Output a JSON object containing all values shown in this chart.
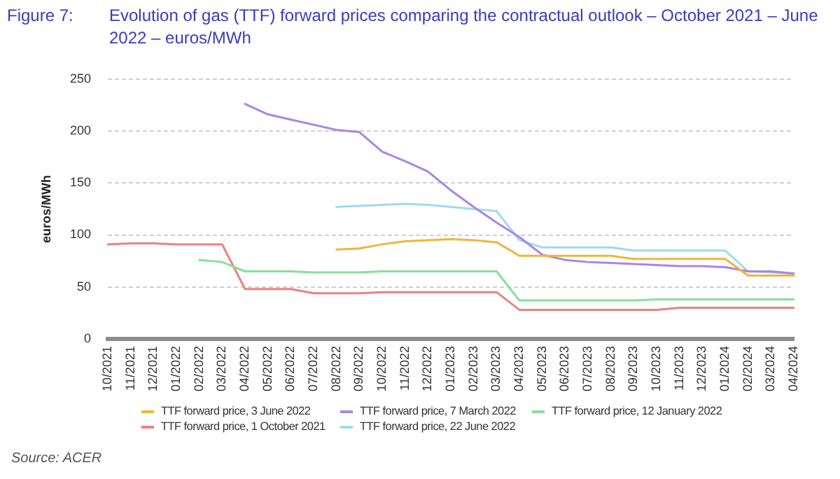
{
  "chart_data": {
    "type": "line",
    "title": "Evolution of gas (TTF) forward prices comparing the contractual outlook – October 2021 – June 2022 – euros/MWh",
    "ylabel": "euros/MWh",
    "annotations": [
      "Figure 7:",
      "Source: ACER"
    ],
    "categories": [
      "10/2021",
      "11/2021",
      "12/2021",
      "01/2022",
      "02/2022",
      "03/2022",
      "04/2022",
      "05/2022",
      "06/2022",
      "07/2022",
      "08/2022",
      "09/2022",
      "10/2022",
      "11/2022",
      "12/2022",
      "01/2023",
      "02/2023",
      "03/2023",
      "04/2023",
      "05/2023",
      "06/2023",
      "07/2023",
      "08/2023",
      "09/2023",
      "10/2023",
      "11/2023",
      "12/2023",
      "01/2024",
      "02/2024",
      "03/2024",
      "04/2024"
    ],
    "series": [
      {
        "name": "TTF forward price, 3 June 2022",
        "color": "#f2b53a",
        "values": [
          null,
          null,
          null,
          null,
          null,
          null,
          null,
          null,
          null,
          null,
          86,
          87,
          91,
          94,
          95,
          96,
          95,
          93,
          80,
          80,
          80,
          80,
          80,
          77,
          77,
          77,
          77,
          77,
          61,
          61,
          61
        ]
      },
      {
        "name": "TTF forward price, 7 March 2022",
        "color": "#a886e6",
        "values": [
          null,
          null,
          null,
          null,
          null,
          null,
          226,
          216,
          211,
          206,
          201,
          199,
          180,
          171,
          161,
          143,
          127,
          112,
          98,
          81,
          76,
          74,
          73,
          72,
          71,
          70,
          70,
          69,
          65,
          65,
          63
        ]
      },
      {
        "name": "TTF forward price, 12 January 2022",
        "color": "#86e09a",
        "values": [
          null,
          null,
          null,
          null,
          76,
          74,
          65,
          65,
          65,
          64,
          64,
          64,
          65,
          65,
          65,
          65,
          65,
          65,
          37,
          37,
          37,
          37,
          37,
          37,
          38,
          38,
          38,
          38,
          38,
          38,
          38
        ]
      },
      {
        "name": "TTF forward price, 1 October 2021",
        "color": "#ee8080",
        "values": [
          91,
          92,
          92,
          91,
          91,
          91,
          48,
          48,
          48,
          44,
          44,
          44,
          45,
          45,
          45,
          45,
          45,
          45,
          28,
          28,
          28,
          28,
          28,
          28,
          28,
          30,
          30,
          30,
          30,
          30,
          30
        ]
      },
      {
        "name": "TTF forward price, 22 June 2022",
        "color": "#9fdaf0",
        "values": [
          null,
          null,
          null,
          null,
          null,
          null,
          null,
          null,
          null,
          null,
          127,
          128,
          129,
          130,
          129,
          127,
          125,
          123,
          95,
          88,
          88,
          88,
          88,
          85,
          85,
          85,
          85,
          85,
          65,
          64,
          63
        ]
      }
    ],
    "ylim": [
      0,
      250
    ],
    "yticks": [
      0,
      50,
      100,
      150,
      200,
      250
    ],
    "grid": "y",
    "legend": "bottom"
  }
}
